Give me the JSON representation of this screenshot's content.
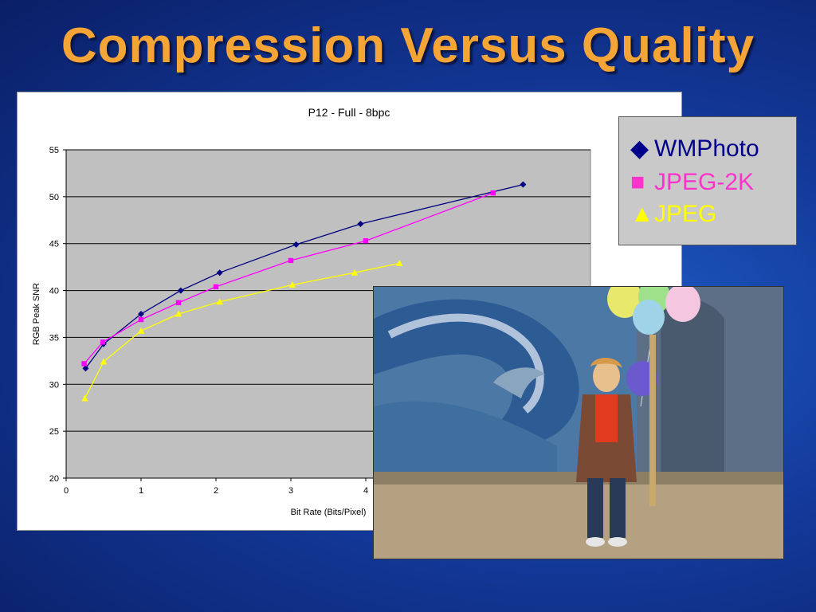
{
  "slide": {
    "title": "Compression Versus Quality"
  },
  "legend": {
    "items": [
      {
        "marker": "◆",
        "label": "WMPhoto",
        "color": "#00008b"
      },
      {
        "marker": "■",
        "label": "JPEG-2K",
        "color": "#ff33cc"
      },
      {
        "marker": "▲",
        "label": "JPEG",
        "color": "#ffff00"
      }
    ]
  },
  "chart_data": {
    "type": "line",
    "title": "P12 - Full - 8bpc",
    "xlabel": "Bit Rate (Bits/Pixel)",
    "ylabel": "RGB Peak SNR",
    "xlim": [
      0,
      7
    ],
    "ylim": [
      20,
      55
    ],
    "xticks": [
      0,
      1,
      2,
      3,
      4
    ],
    "yticks": [
      20,
      25,
      30,
      35,
      40,
      45,
      50,
      55
    ],
    "grid": true,
    "series": [
      {
        "name": "WMPhoto",
        "color": "#000080",
        "marker": "diamond",
        "x": [
          0.26,
          0.5,
          1.0,
          1.53,
          2.05,
          3.07,
          3.93,
          6.1
        ],
        "y": [
          31.7,
          34.3,
          37.5,
          40.0,
          41.9,
          44.9,
          47.1,
          51.3
        ]
      },
      {
        "name": "JPEG-2K",
        "color": "#ff00ff",
        "marker": "square",
        "x": [
          0.24,
          0.49,
          1.0,
          1.5,
          2.0,
          3.0,
          4.0,
          5.7
        ],
        "y": [
          32.2,
          34.5,
          36.9,
          38.7,
          40.4,
          43.2,
          45.3,
          50.4
        ]
      },
      {
        "name": "JPEG",
        "color": "#ffff00",
        "marker": "triangle",
        "x": [
          0.25,
          0.5,
          1.0,
          1.5,
          2.05,
          3.02,
          3.85,
          4.45
        ],
        "y": [
          28.5,
          32.4,
          35.7,
          37.5,
          38.8,
          40.6,
          41.9,
          42.9
        ]
      }
    ]
  }
}
